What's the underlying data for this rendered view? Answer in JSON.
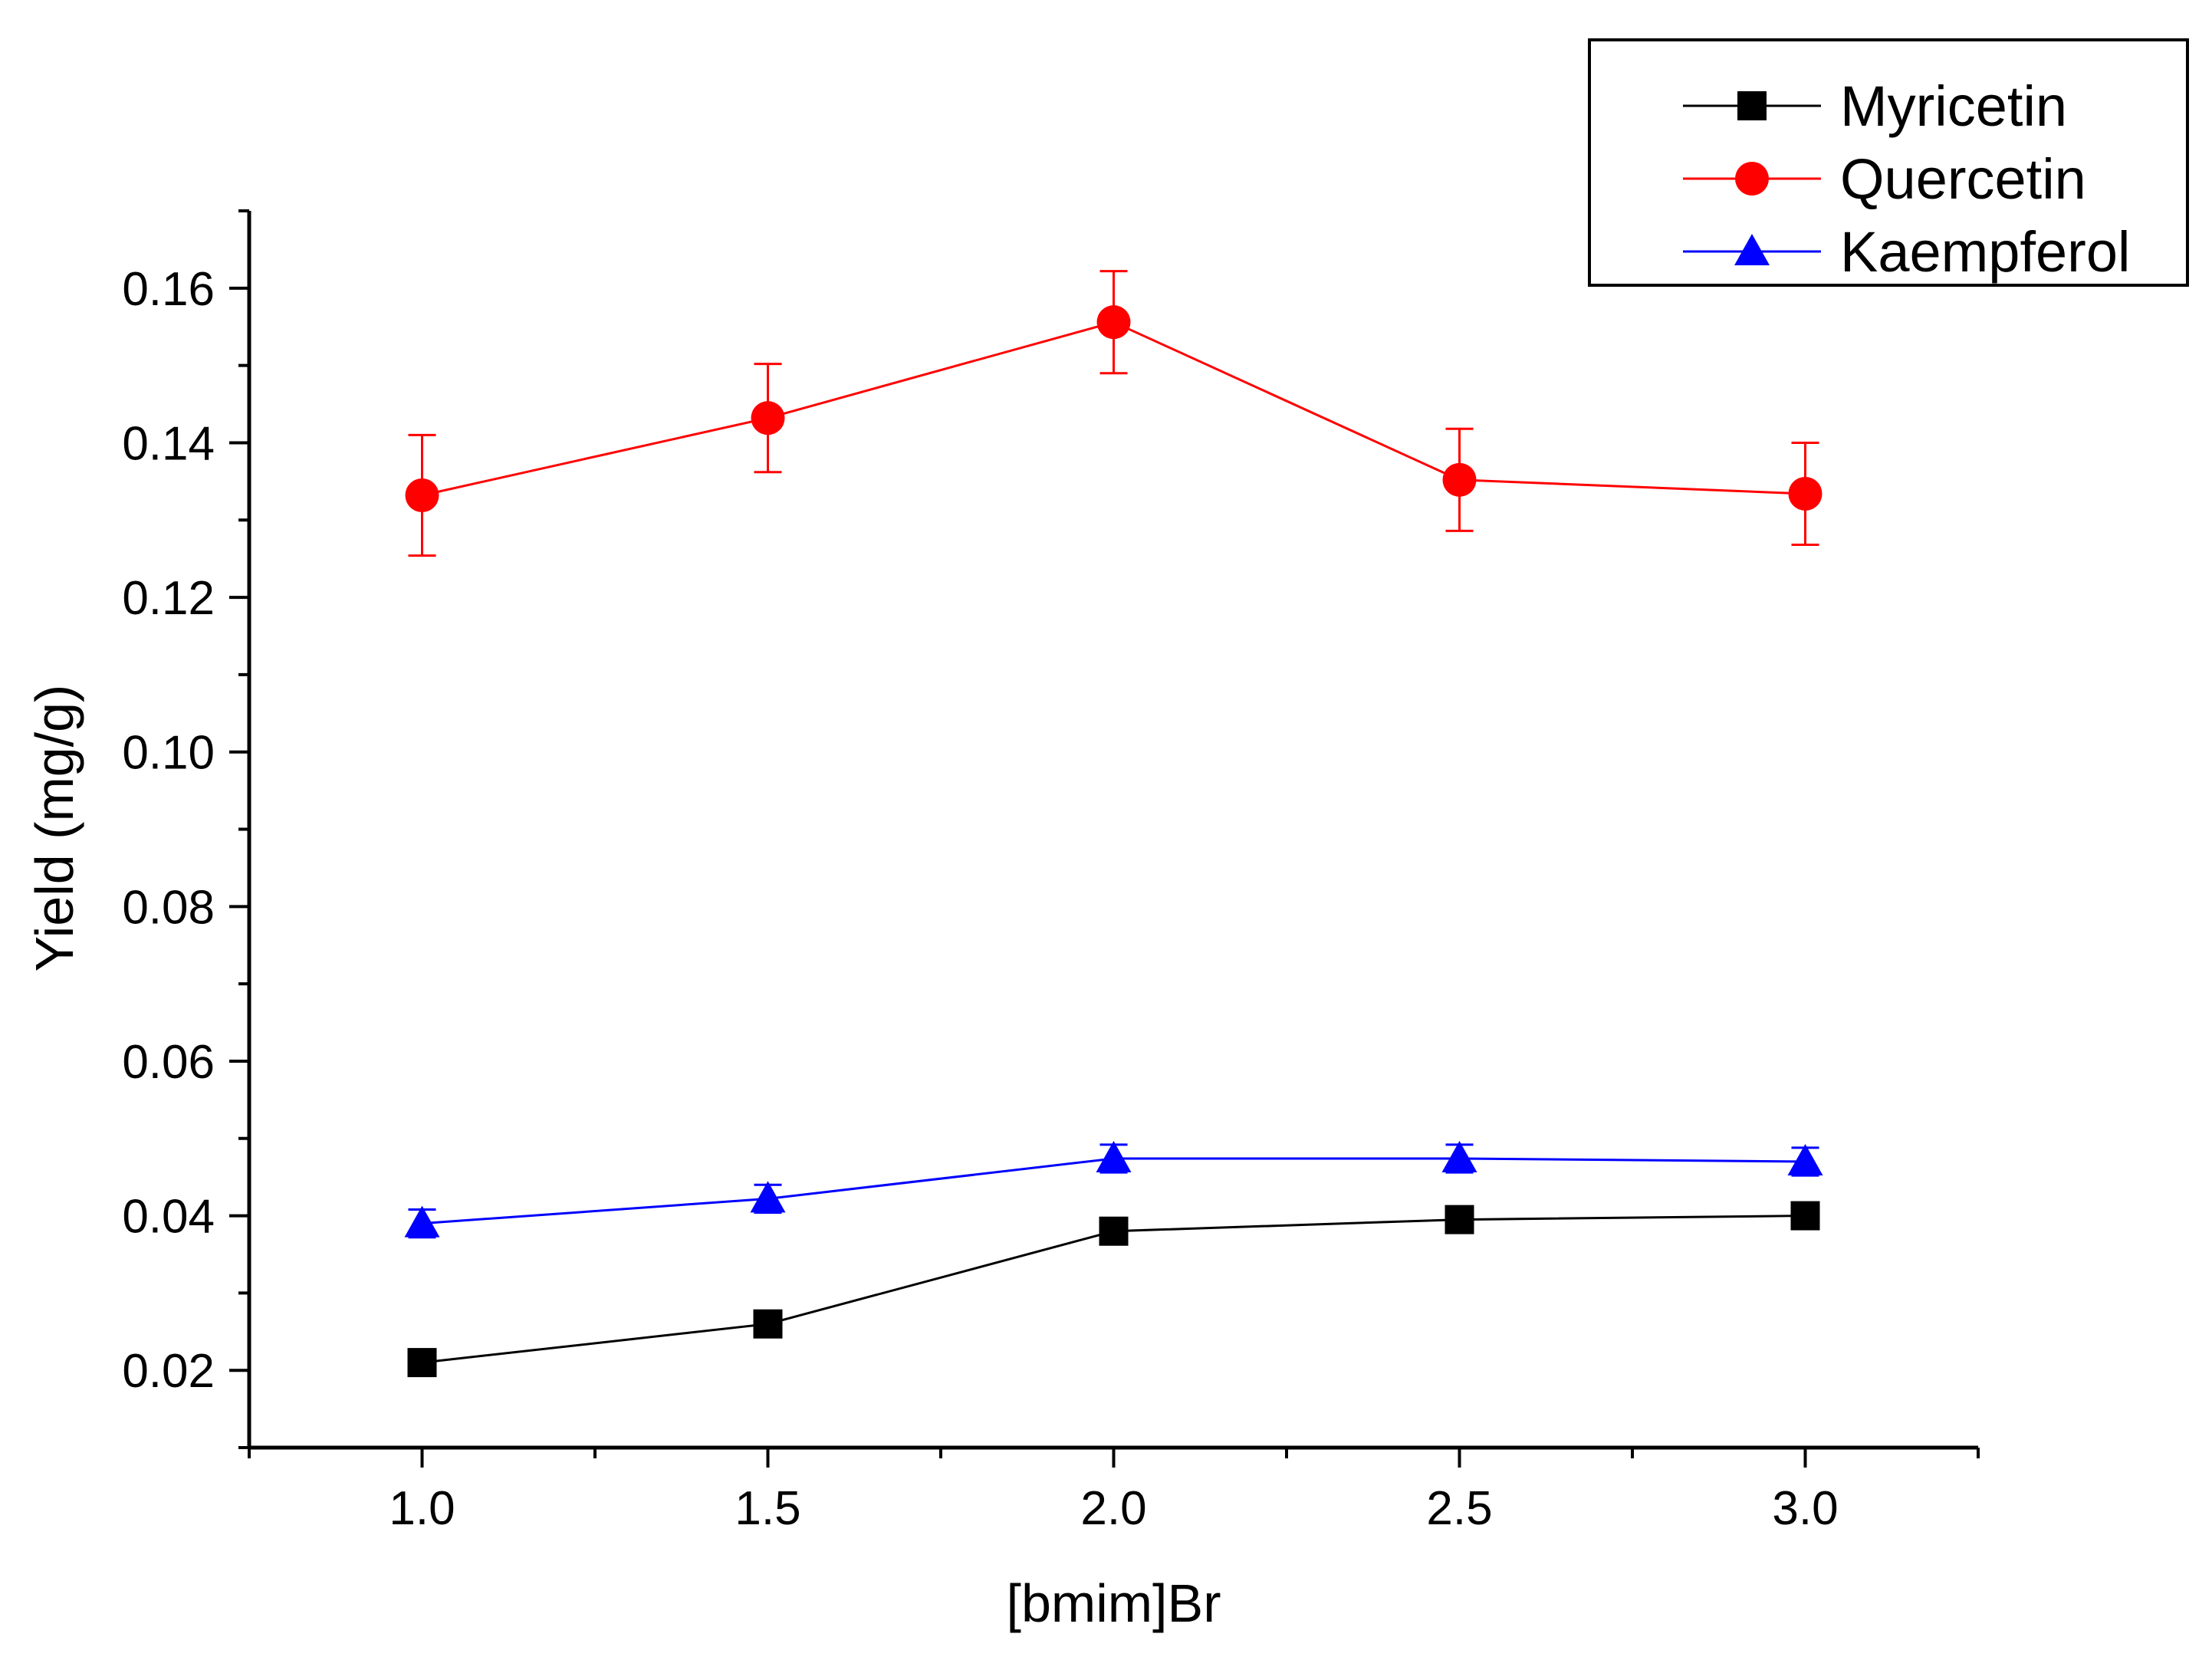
{
  "chart_data": {
    "type": "line",
    "title": "",
    "xlabel": "[bmim]Br",
    "ylabel": "Yield (mg/g)",
    "xlim": [
      0.75,
      3.25
    ],
    "ylim": [
      0.01,
      0.17
    ],
    "x": [
      1.0,
      1.5,
      2.0,
      2.5,
      3.0
    ],
    "x_ticks": [
      "1.0",
      "1.5",
      "2.0",
      "2.5",
      "3.0"
    ],
    "y_ticks": [
      "0.02",
      "0.04",
      "0.06",
      "0.08",
      "0.10",
      "0.12",
      "0.14",
      "0.16"
    ],
    "y_tick_values": [
      0.02,
      0.04,
      0.06,
      0.08,
      0.1,
      0.12,
      0.14,
      0.16
    ],
    "grid": false,
    "legend_position": "top-right",
    "series": [
      {
        "name": "Myricetin",
        "color": "#000000",
        "marker": "square",
        "values": [
          0.021,
          0.026,
          0.038,
          0.0395,
          0.04
        ],
        "errors": [
          0.0008,
          0.0008,
          0.0012,
          0.0012,
          0.0012
        ]
      },
      {
        "name": "Quercetin",
        "color": "#ff0000",
        "marker": "circle",
        "values": [
          0.1332,
          0.1432,
          0.1556,
          0.1352,
          0.1334
        ],
        "errors": [
          0.0078,
          0.007,
          0.0066,
          0.0066,
          0.0066
        ]
      },
      {
        "name": "Kaempferol",
        "color": "#0000ff",
        "marker": "triangle",
        "values": [
          0.039,
          0.0422,
          0.0474,
          0.0474,
          0.047
        ],
        "errors": [
          0.0018,
          0.0018,
          0.0018,
          0.0018,
          0.0018
        ]
      }
    ]
  }
}
